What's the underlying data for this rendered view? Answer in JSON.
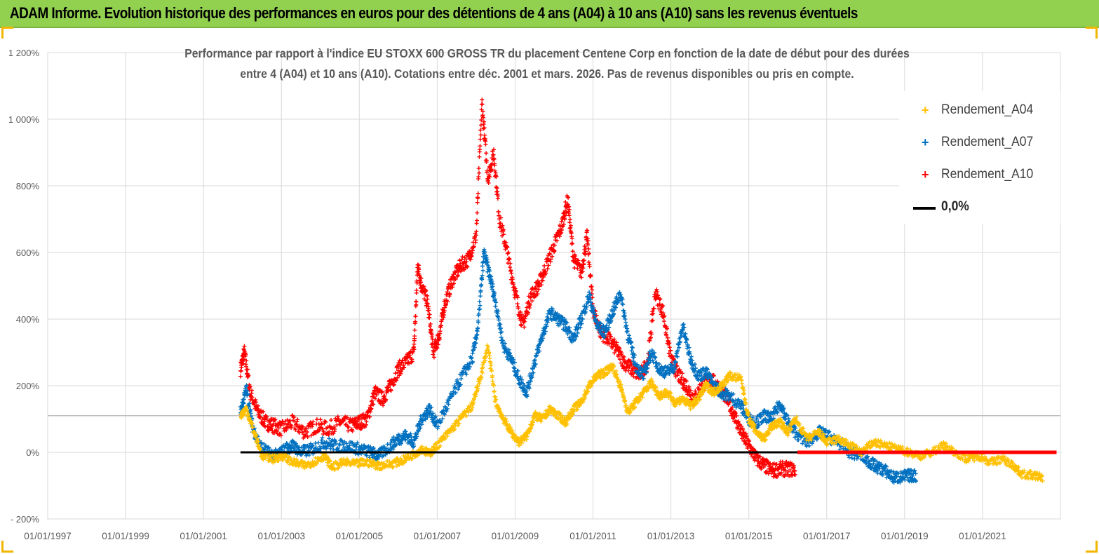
{
  "banner": {
    "title": "ADAM Informe. Evolution historique des performances en euros pour des détentions de 4 ans (A04) à 10 ans (A10) sans les revenus éventuels"
  },
  "colors": {
    "banner_bg": "#92d050",
    "a04": "#ffc000",
    "a07": "#0070c0",
    "a10": "#ff0000",
    "zero": "#000000",
    "grid": "#d9d9d9"
  },
  "chart_data": {
    "type": "scatter",
    "title_lines": [
      "Performance par rapport à l'indice EU STOXX 600 GROSS TR  du placement Centene Corp en fonction de la date de début pour des durées",
      "entre 4 (A04) et 10 ans (A10). Cotations entre déc. 2001 et mars. 2026. Pas de revenus disponibles ou pris en compte."
    ],
    "x_range_years": [
      1997.0,
      2023.0
    ],
    "x_ticks": [
      {
        "year": 1997,
        "label": "01/01/1997"
      },
      {
        "year": 1999,
        "label": "01/01/1999"
      },
      {
        "year": 2001,
        "label": "01/01/2001"
      },
      {
        "year": 2003,
        "label": "01/01/2003"
      },
      {
        "year": 2005,
        "label": "01/01/2005"
      },
      {
        "year": 2007,
        "label": "01/01/2007"
      },
      {
        "year": 2009,
        "label": "01/01/2009"
      },
      {
        "year": 2011,
        "label": "01/01/2011"
      },
      {
        "year": 2013,
        "label": "01/01/2013"
      },
      {
        "year": 2015,
        "label": "01/01/2015"
      },
      {
        "year": 2017,
        "label": "01/01/2017"
      },
      {
        "year": 2019,
        "label": "01/01/2019"
      },
      {
        "year": 2021,
        "label": "01/01/2021"
      }
    ],
    "y_range": [
      -200,
      1200
    ],
    "y_ticks": [
      {
        "value": 1200,
        "label": "1 200%"
      },
      {
        "value": 1000,
        "label": "1 000%"
      },
      {
        "value": 800,
        "label": "800%"
      },
      {
        "value": 600,
        "label": "600%"
      },
      {
        "value": 400,
        "label": "400%"
      },
      {
        "value": 200,
        "label": "200%"
      },
      {
        "value": 0,
        "label": "0%"
      },
      {
        "value": -200,
        "label": "- 200%"
      }
    ],
    "reference_hline": 110,
    "legend_position": "top-right",
    "series": [
      {
        "name": "Rendement_A04",
        "marker": "+",
        "points": [
          [
            2001.95,
            110
          ],
          [
            2002.1,
            130
          ],
          [
            2002.3,
            60
          ],
          [
            2002.5,
            -10
          ],
          [
            2002.8,
            -20
          ],
          [
            2003.0,
            -10
          ],
          [
            2003.3,
            -30
          ],
          [
            2003.6,
            -40
          ],
          [
            2003.9,
            -25
          ],
          [
            2004.1,
            -10
          ],
          [
            2004.3,
            -45
          ],
          [
            2004.6,
            -30
          ],
          [
            2004.9,
            -35
          ],
          [
            2005.2,
            -30
          ],
          [
            2005.5,
            -40
          ],
          [
            2005.8,
            -35
          ],
          [
            2006.1,
            -25
          ],
          [
            2006.4,
            -5
          ],
          [
            2006.6,
            10
          ],
          [
            2006.8,
            -5
          ],
          [
            2007.0,
            20
          ],
          [
            2007.3,
            60
          ],
          [
            2007.6,
            100
          ],
          [
            2007.9,
            140
          ],
          [
            2008.1,
            220
          ],
          [
            2008.3,
            320
          ],
          [
            2008.5,
            150
          ],
          [
            2008.7,
            100
          ],
          [
            2008.9,
            60
          ],
          [
            2009.1,
            30
          ],
          [
            2009.3,
            50
          ],
          [
            2009.5,
            110
          ],
          [
            2009.7,
            100
          ],
          [
            2009.9,
            130
          ],
          [
            2010.1,
            110
          ],
          [
            2010.3,
            90
          ],
          [
            2010.5,
            130
          ],
          [
            2010.7,
            150
          ],
          [
            2010.9,
            200
          ],
          [
            2011.1,
            230
          ],
          [
            2011.3,
            240
          ],
          [
            2011.5,
            260
          ],
          [
            2011.7,
            200
          ],
          [
            2011.9,
            120
          ],
          [
            2012.1,
            150
          ],
          [
            2012.3,
            180
          ],
          [
            2012.5,
            210
          ],
          [
            2012.7,
            170
          ],
          [
            2012.9,
            180
          ],
          [
            2013.1,
            150
          ],
          [
            2013.3,
            160
          ],
          [
            2013.5,
            140
          ],
          [
            2013.7,
            160
          ],
          [
            2013.9,
            200
          ],
          [
            2014.1,
            180
          ],
          [
            2014.3,
            200
          ],
          [
            2014.5,
            230
          ],
          [
            2014.8,
            220
          ],
          [
            2015.0,
            100
          ],
          [
            2015.2,
            60
          ],
          [
            2015.4,
            40
          ],
          [
            2015.6,
            80
          ],
          [
            2015.8,
            90
          ],
          [
            2016.0,
            60
          ],
          [
            2016.2,
            100
          ],
          [
            2016.5,
            40
          ],
          [
            2016.8,
            60
          ],
          [
            2017.0,
            30
          ],
          [
            2017.3,
            40
          ],
          [
            2017.6,
            20
          ],
          [
            2017.9,
            0
          ],
          [
            2018.2,
            30
          ],
          [
            2018.5,
            20
          ],
          [
            2018.8,
            10
          ],
          [
            2019.1,
            0
          ],
          [
            2019.4,
            -10
          ],
          [
            2019.7,
            0
          ],
          [
            2020.0,
            20
          ],
          [
            2020.3,
            0
          ],
          [
            2020.6,
            -20
          ],
          [
            2020.9,
            -10
          ],
          [
            2021.2,
            -30
          ],
          [
            2021.5,
            -20
          ],
          [
            2021.8,
            -40
          ],
          [
            2022.0,
            -65
          ],
          [
            2022.3,
            -70
          ],
          [
            2022.55,
            -75
          ]
        ]
      },
      {
        "name": "Rendement_A07",
        "marker": "+",
        "points": [
          [
            2001.95,
            120
          ],
          [
            2002.1,
            190
          ],
          [
            2002.25,
            80
          ],
          [
            2002.45,
            20
          ],
          [
            2002.7,
            -5
          ],
          [
            2002.9,
            -10
          ],
          [
            2003.1,
            10
          ],
          [
            2003.3,
            20
          ],
          [
            2003.5,
            0
          ],
          [
            2003.8,
            10
          ],
          [
            2004.1,
            30
          ],
          [
            2004.4,
            20
          ],
          [
            2004.7,
            20
          ],
          [
            2005.0,
            10
          ],
          [
            2005.3,
            0
          ],
          [
            2005.5,
            -10
          ],
          [
            2005.8,
            20
          ],
          [
            2006.0,
            40
          ],
          [
            2006.2,
            50
          ],
          [
            2006.4,
            30
          ],
          [
            2006.6,
            100
          ],
          [
            2006.8,
            130
          ],
          [
            2007.0,
            80
          ],
          [
            2007.3,
            150
          ],
          [
            2007.6,
            220
          ],
          [
            2007.9,
            280
          ],
          [
            2008.05,
            380
          ],
          [
            2008.2,
            600
          ],
          [
            2008.35,
            530
          ],
          [
            2008.5,
            450
          ],
          [
            2008.7,
            320
          ],
          [
            2008.9,
            280
          ],
          [
            2009.1,
            220
          ],
          [
            2009.3,
            180
          ],
          [
            2009.5,
            270
          ],
          [
            2009.7,
            350
          ],
          [
            2009.9,
            420
          ],
          [
            2010.1,
            400
          ],
          [
            2010.3,
            380
          ],
          [
            2010.5,
            340
          ],
          [
            2010.7,
            400
          ],
          [
            2010.9,
            470
          ],
          [
            2011.1,
            380
          ],
          [
            2011.3,
            360
          ],
          [
            2011.5,
            420
          ],
          [
            2011.7,
            480
          ],
          [
            2011.9,
            350
          ],
          [
            2012.1,
            260
          ],
          [
            2012.3,
            230
          ],
          [
            2012.5,
            300
          ],
          [
            2012.7,
            250
          ],
          [
            2012.9,
            240
          ],
          [
            2013.1,
            260
          ],
          [
            2013.3,
            380
          ],
          [
            2013.5,
            280
          ],
          [
            2013.7,
            230
          ],
          [
            2013.9,
            240
          ],
          [
            2014.1,
            200
          ],
          [
            2014.3,
            180
          ],
          [
            2014.5,
            170
          ],
          [
            2014.8,
            140
          ],
          [
            2015.0,
            100
          ],
          [
            2015.2,
            90
          ],
          [
            2015.4,
            110
          ],
          [
            2015.6,
            100
          ],
          [
            2015.8,
            150
          ],
          [
            2016.0,
            90
          ],
          [
            2016.2,
            60
          ],
          [
            2016.5,
            30
          ],
          [
            2016.8,
            60
          ],
          [
            2017.0,
            50
          ],
          [
            2017.3,
            30
          ],
          [
            2017.6,
            0
          ],
          [
            2017.9,
            -10
          ],
          [
            2018.1,
            -30
          ],
          [
            2018.3,
            -45
          ],
          [
            2018.5,
            -55
          ],
          [
            2018.7,
            -75
          ],
          [
            2018.9,
            -75
          ],
          [
            2019.1,
            -70
          ],
          [
            2019.3,
            -70
          ]
        ]
      },
      {
        "name": "Rendement_A10",
        "marker": "+",
        "points": [
          [
            2001.95,
            250
          ],
          [
            2002.05,
            300
          ],
          [
            2002.2,
            180
          ],
          [
            2002.4,
            120
          ],
          [
            2002.6,
            90
          ],
          [
            2002.8,
            80
          ],
          [
            2003.0,
            70
          ],
          [
            2003.3,
            90
          ],
          [
            2003.6,
            60
          ],
          [
            2003.9,
            80
          ],
          [
            2004.2,
            70
          ],
          [
            2004.5,
            90
          ],
          [
            2004.8,
            80
          ],
          [
            2005.0,
            90
          ],
          [
            2005.2,
            100
          ],
          [
            2005.4,
            180
          ],
          [
            2005.6,
            160
          ],
          [
            2005.8,
            200
          ],
          [
            2006.0,
            250
          ],
          [
            2006.2,
            270
          ],
          [
            2006.4,
            300
          ],
          [
            2006.5,
            560
          ],
          [
            2006.6,
            500
          ],
          [
            2006.75,
            450
          ],
          [
            2006.9,
            300
          ],
          [
            2007.05,
            350
          ],
          [
            2007.2,
            450
          ],
          [
            2007.4,
            520
          ],
          [
            2007.6,
            560
          ],
          [
            2007.8,
            580
          ],
          [
            2008.0,
            650
          ],
          [
            2008.15,
            1050
          ],
          [
            2008.3,
            820
          ],
          [
            2008.45,
            900
          ],
          [
            2008.6,
            700
          ],
          [
            2008.8,
            600
          ],
          [
            2009.0,
            480
          ],
          [
            2009.2,
            380
          ],
          [
            2009.4,
            470
          ],
          [
            2009.6,
            500
          ],
          [
            2009.8,
            560
          ],
          [
            2010.0,
            620
          ],
          [
            2010.2,
            680
          ],
          [
            2010.35,
            760
          ],
          [
            2010.5,
            580
          ],
          [
            2010.7,
            540
          ],
          [
            2010.85,
            650
          ],
          [
            2011.0,
            430
          ],
          [
            2011.2,
            360
          ],
          [
            2011.4,
            340
          ],
          [
            2011.6,
            310
          ],
          [
            2011.8,
            270
          ],
          [
            2012.0,
            250
          ],
          [
            2012.2,
            230
          ],
          [
            2012.4,
            270
          ],
          [
            2012.6,
            480
          ],
          [
            2012.8,
            420
          ],
          [
            2013.0,
            280
          ],
          [
            2013.2,
            230
          ],
          [
            2013.4,
            200
          ],
          [
            2013.6,
            160
          ],
          [
            2013.8,
            200
          ],
          [
            2014.0,
            220
          ],
          [
            2014.2,
            200
          ],
          [
            2014.4,
            170
          ],
          [
            2014.6,
            120
          ],
          [
            2014.8,
            60
          ],
          [
            2015.0,
            20
          ],
          [
            2015.2,
            -20
          ],
          [
            2015.4,
            -40
          ],
          [
            2015.6,
            -55
          ],
          [
            2015.8,
            -50
          ],
          [
            2016.0,
            -50
          ],
          [
            2016.2,
            -52
          ]
        ]
      },
      {
        "name": "Rendement_A10 (0 segment)",
        "marker": "line",
        "points": [
          [
            2016.25,
            0
          ],
          [
            2022.9,
            0
          ]
        ]
      }
    ],
    "zero_line": {
      "name": "0,0%",
      "from_year": 2001.95,
      "to_year": 2022.9,
      "value": 0
    }
  },
  "legend": {
    "items": [
      {
        "label": "Rendement_A04",
        "marker": "+"
      },
      {
        "label": "Rendement_A07",
        "marker": "+"
      },
      {
        "label": "Rendement_A10",
        "marker": "+"
      },
      {
        "label": "0,0%",
        "marker": "line"
      }
    ]
  }
}
